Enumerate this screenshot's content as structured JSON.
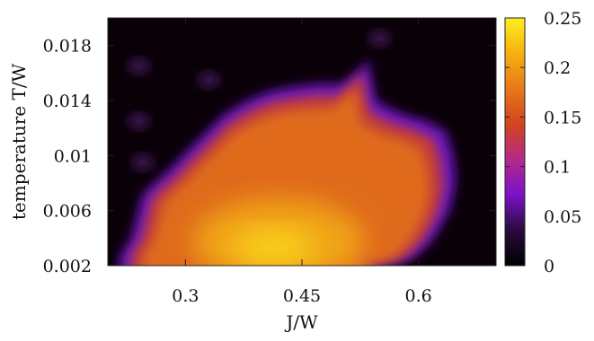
{
  "chart_data": {
    "type": "heatmap",
    "title": "",
    "xlabel": "J/W",
    "ylabel": "temperature T/W",
    "xlim": [
      0.2,
      0.7
    ],
    "ylim": [
      0.002,
      0.02
    ],
    "x_ticks": [
      {
        "value": 0.3,
        "label": "0.3"
      },
      {
        "value": 0.45,
        "label": "0.45"
      },
      {
        "value": 0.6,
        "label": "0.6"
      }
    ],
    "y_ticks": [
      {
        "value": 0.002,
        "label": "0.002"
      },
      {
        "value": 0.006,
        "label": "0.006"
      },
      {
        "value": 0.01,
        "label": "0.01"
      },
      {
        "value": 0.014,
        "label": "0.014"
      },
      {
        "value": 0.018,
        "label": "0.018"
      }
    ],
    "colorbar": {
      "range": [
        0,
        0.25
      ],
      "ticks": [
        {
          "value": 0,
          "label": "0"
        },
        {
          "value": 0.05,
          "label": "0.05"
        },
        {
          "value": 0.1,
          "label": "0.1"
        },
        {
          "value": 0.15,
          "label": "0.15"
        },
        {
          "value": 0.2,
          "label": "0.2"
        },
        {
          "value": 0.25,
          "label": "0.25"
        }
      ],
      "palette": [
        "#000000",
        "#2a0a3c",
        "#7a12c8",
        "#b32a8a",
        "#d2441e",
        "#e8781a",
        "#f5b10f",
        "#ffee22"
      ]
    },
    "region": {
      "boundary_T": [
        {
          "J": 0.215,
          "T": 0.0026
        },
        {
          "J": 0.23,
          "T": 0.004
        },
        {
          "J": 0.245,
          "T": 0.0072
        },
        {
          "J": 0.26,
          "T": 0.008
        },
        {
          "J": 0.28,
          "T": 0.009
        },
        {
          "J": 0.3,
          "T": 0.0102
        },
        {
          "J": 0.32,
          "T": 0.0113
        },
        {
          "J": 0.35,
          "T": 0.013
        },
        {
          "J": 0.38,
          "T": 0.014
        },
        {
          "J": 0.41,
          "T": 0.0147
        },
        {
          "J": 0.44,
          "T": 0.015
        },
        {
          "J": 0.47,
          "T": 0.0152
        },
        {
          "J": 0.5,
          "T": 0.0152
        },
        {
          "J": 0.52,
          "T": 0.016
        },
        {
          "J": 0.535,
          "T": 0.017
        },
        {
          "J": 0.545,
          "T": 0.014
        },
        {
          "J": 0.56,
          "T": 0.0135
        },
        {
          "J": 0.58,
          "T": 0.013
        },
        {
          "J": 0.61,
          "T": 0.0125
        },
        {
          "J": 0.635,
          "T": 0.0118
        },
        {
          "J": 0.645,
          "T": 0.01
        },
        {
          "J": 0.648,
          "T": 0.008
        },
        {
          "J": 0.64,
          "T": 0.006
        },
        {
          "J": 0.62,
          "T": 0.004
        },
        {
          "J": 0.6,
          "T": 0.0028
        },
        {
          "J": 0.58,
          "T": 0.0022
        },
        {
          "J": 0.55,
          "T": 0.002
        }
      ],
      "peak_value": 0.23,
      "peak_location": {
        "J": 0.42,
        "T": 0.0032
      }
    }
  }
}
